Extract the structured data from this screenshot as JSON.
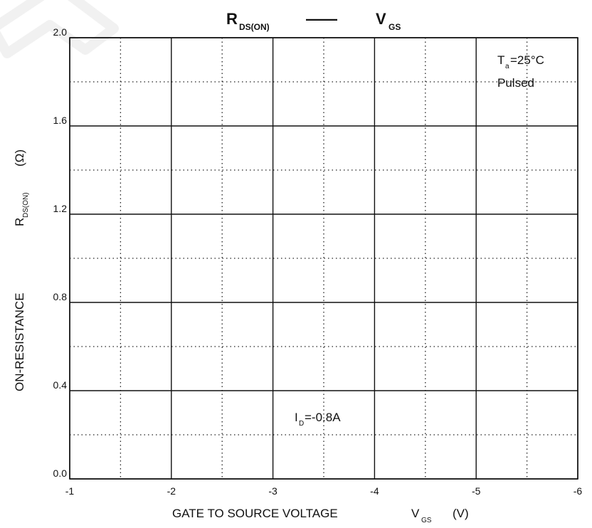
{
  "chart_data": {
    "type": "line",
    "title": {
      "left": {
        "main": "R",
        "sub": "DS(ON)"
      },
      "separator": "——",
      "right": {
        "main": "V",
        "sub": "GS"
      }
    },
    "xaxis": {
      "label_main": "GATE TO SOURCE VOLTAGE",
      "label_symbol": "V",
      "label_symbol_sub": "GS",
      "label_unit": "(V)",
      "ticks": [
        -1,
        -2,
        -3,
        -4,
        -5,
        -6
      ],
      "tick_labels": [
        "-1",
        "-2",
        "-3",
        "-4",
        "-5",
        "-6"
      ],
      "range": [
        -1,
        -6
      ],
      "minor_step": 0.5
    },
    "yaxis": {
      "label_main": "ON-RESISTANCE",
      "label_symbol": "R",
      "label_symbol_sub": "DS(ON)",
      "label_unit": "(Ω)",
      "ticks": [
        0.0,
        0.4,
        0.8,
        1.2,
        1.6,
        2.0
      ],
      "tick_labels": [
        "0.0",
        "0.4",
        "0.8",
        "1.2",
        "1.6",
        "2.0"
      ],
      "range": [
        0,
        2.0
      ],
      "minor_step": 0.2
    },
    "grid": true,
    "annotations": {
      "conditions": {
        "line1_main": "T",
        "line1_sub": "a",
        "line1_rest": "=25°C",
        "line2": "Pulsed"
      },
      "current": {
        "main": "I",
        "sub": "D",
        "rest": "=-0.8A"
      }
    },
    "series": []
  }
}
